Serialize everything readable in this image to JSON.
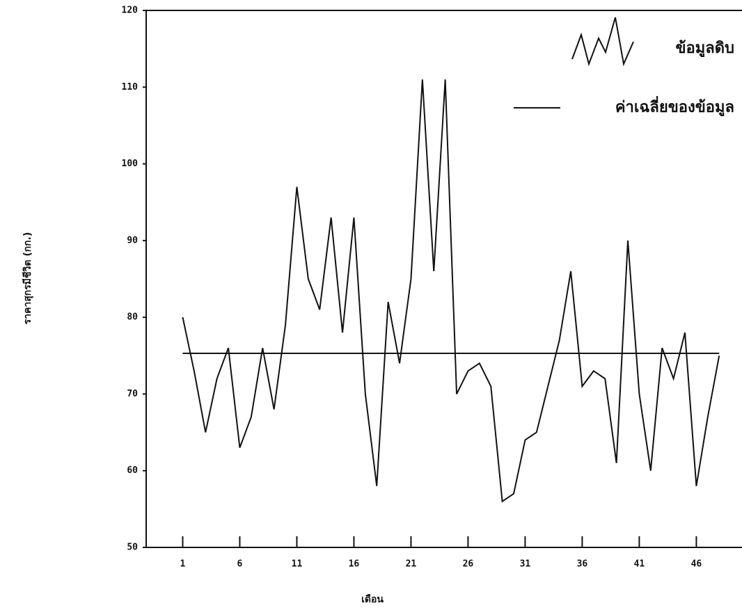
{
  "chart_data": {
    "type": "line",
    "xlabel": "เดือน",
    "ylabel": "ราคาสุกรมีชีวิต (กก.)",
    "x": [
      1,
      2,
      3,
      4,
      5,
      6,
      7,
      8,
      9,
      10,
      11,
      12,
      13,
      14,
      15,
      16,
      17,
      18,
      19,
      20,
      21,
      22,
      23,
      24,
      25,
      26,
      27,
      28,
      29,
      30,
      31,
      32,
      33,
      34,
      35,
      36,
      37,
      38,
      39,
      40,
      41,
      42,
      43,
      44,
      45,
      46,
      47,
      48
    ],
    "series": [
      {
        "name": "ข้อมูลดิบ",
        "color": "#111111",
        "values": [
          80,
          73,
          65,
          72,
          76,
          63,
          67,
          76,
          68,
          79,
          97,
          85,
          81,
          93,
          78,
          93,
          70,
          58,
          82,
          74,
          85,
          111,
          86,
          111,
          70,
          73,
          74,
          71,
          56,
          57,
          64,
          65,
          71,
          77,
          86,
          71,
          73,
          72,
          61,
          90,
          70,
          60,
          76,
          72,
          78,
          58,
          67,
          75
        ]
      }
    ],
    "mean_line": {
      "name": "ค่าเฉลี่ยของข้อมูล",
      "value": 75.3,
      "color": "#111111"
    },
    "xlim": [
      -2.2,
      50
    ],
    "xticks": [
      1,
      6,
      11,
      16,
      21,
      26,
      31,
      36,
      41,
      46
    ],
    "ylim": [
      50,
      120
    ],
    "yticks": [
      50,
      60,
      70,
      80,
      90,
      100,
      110,
      120
    ],
    "grid": false,
    "legend": "upper right"
  }
}
